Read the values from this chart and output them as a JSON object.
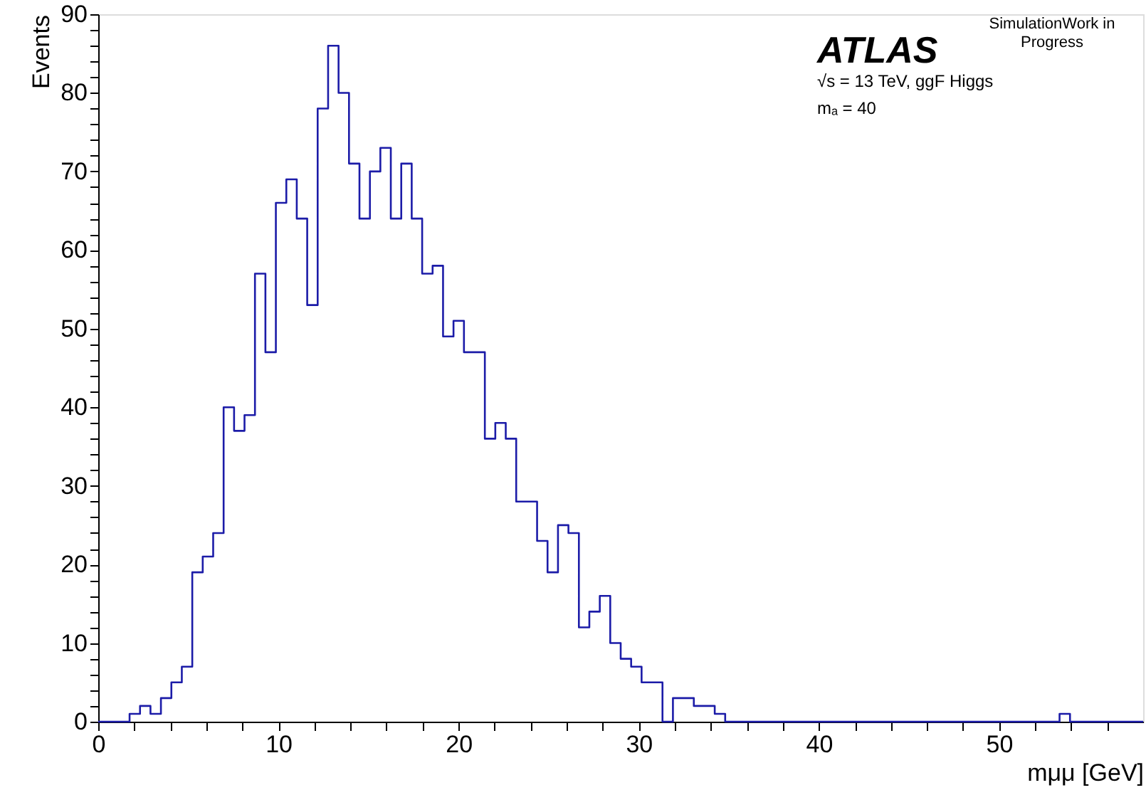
{
  "chart_data": {
    "type": "histogram",
    "xlabel": "mμμ [GeV]",
    "ylabel": "Events",
    "annotations": [
      "ATLAS",
      "SimulationWork in Progress",
      "√s = 13 TeV, ggF Higgs",
      "mₐ = 40"
    ],
    "bins": [
      0,
      0.58,
      1.16,
      1.74,
      2.32,
      2.9,
      3.48,
      4.06,
      4.64,
      5.22,
      5.8,
      6.38,
      6.96,
      7.54,
      8.12,
      8.7,
      9.28,
      9.86,
      10.44,
      11.02,
      11.6,
      12.18,
      12.76,
      13.34,
      13.92,
      14.5,
      15.08,
      15.66,
      16.24,
      16.82,
      17.4,
      17.98,
      18.56,
      19.14,
      19.72,
      20.3,
      20.88,
      21.46,
      22.04,
      22.62,
      23.2,
      23.78,
      24.36,
      24.94,
      25.52,
      26.1,
      26.68,
      27.26,
      27.84,
      28.42,
      29,
      29.58,
      30.16,
      30.74,
      31.32,
      31.9,
      32.48,
      33.06,
      33.64,
      34.22,
      34.8,
      35.38,
      35.96,
      36.54,
      37.12,
      37.7,
      38.28,
      38.86,
      39.44,
      40.02,
      40.6,
      41.18,
      41.76,
      42.34,
      42.92,
      43.5,
      44.08,
      44.66,
      45.24,
      45.82,
      46.4,
      46.98,
      47.56,
      48.14,
      48.72,
      49.3,
      49.88,
      50.46,
      51.04,
      51.62,
      52.2,
      52.78,
      53.36,
      53.94,
      54.52,
      55.1,
      55.68,
      56.26,
      56.84,
      57.42,
      58
    ],
    "values": [
      0,
      0,
      0,
      1,
      2,
      1,
      3,
      5,
      7,
      19,
      21,
      24,
      40,
      37,
      39,
      57,
      47,
      66,
      69,
      64,
      53,
      78,
      86,
      80,
      71,
      64,
      70,
      73,
      64,
      71,
      64,
      57,
      58,
      49,
      51,
      47,
      47,
      36,
      38,
      36,
      28,
      28,
      23,
      19,
      25,
      24,
      12,
      14,
      16,
      10,
      8,
      7,
      5,
      5,
      0,
      3,
      3,
      2,
      2,
      1,
      0,
      0,
      0,
      0,
      0,
      0,
      0,
      0,
      0,
      0,
      0,
      0,
      0,
      0,
      0,
      0,
      0,
      0,
      0,
      0,
      0,
      0,
      0,
      0,
      0,
      0,
      0,
      0,
      0,
      0,
      0,
      0,
      1,
      0,
      0,
      0,
      0,
      0,
      0,
      0
    ],
    "color": "#1c1ca8",
    "xlim": [
      0,
      58
    ],
    "ylim": [
      0,
      90
    ],
    "xticks": [
      0,
      {
        "value": 2,
        "label": null
      },
      {
        "value": 4,
        "label": null
      },
      {
        "value": 6,
        "label": null
      },
      {
        "value": 8,
        "label": null
      },
      10,
      {
        "value": 12,
        "label": null
      },
      {
        "value": 14,
        "label": null
      },
      {
        "value": 16,
        "label": null
      },
      {
        "value": 18,
        "label": null
      },
      20,
      {
        "value": 22,
        "label": null
      },
      {
        "value": 24,
        "label": null
      },
      {
        "value": 26,
        "label": null
      },
      {
        "value": 28,
        "label": null
      },
      30,
      {
        "value": 32,
        "label": null
      },
      {
        "value": 34,
        "label": null
      },
      {
        "value": 36,
        "label": null
      },
      {
        "value": 38,
        "label": null
      },
      40,
      {
        "value": 42,
        "label": null
      },
      {
        "value": 44,
        "label": null
      },
      {
        "value": 46,
        "label": null
      },
      {
        "value": 48,
        "label": null
      },
      50,
      {
        "value": 52,
        "label": null
      },
      {
        "value": 54,
        "label": null
      },
      {
        "value": 56,
        "label": null
      }
    ],
    "yticks": [
      0,
      {
        "value": 2,
        "label": null
      },
      {
        "value": 4,
        "label": null
      },
      {
        "value": 6,
        "label": null
      },
      {
        "value": 8,
        "label": null
      },
      10,
      {
        "value": 12,
        "label": null
      },
      {
        "value": 14,
        "label": null
      },
      {
        "value": 16,
        "label": null
      },
      {
        "value": 18,
        "label": null
      },
      20,
      {
        "value": 22,
        "label": null
      },
      {
        "value": 24,
        "label": null
      },
      {
        "value": 26,
        "label": null
      },
      {
        "value": 28,
        "label": null
      },
      30,
      {
        "value": 32,
        "label": null
      },
      {
        "value": 34,
        "label": null
      },
      {
        "value": 36,
        "label": null
      },
      {
        "value": 38,
        "label": null
      },
      40,
      {
        "value": 42,
        "label": null
      },
      {
        "value": 44,
        "label": null
      },
      {
        "value": 46,
        "label": null
      },
      {
        "value": 48,
        "label": null
      },
      50,
      {
        "value": 52,
        "label": null
      },
      {
        "value": 54,
        "label": null
      },
      {
        "value": 56,
        "label": null
      },
      {
        "value": 58,
        "label": null
      },
      60,
      {
        "value": 62,
        "label": null
      },
      {
        "value": 64,
        "label": null
      },
      {
        "value": 66,
        "label": null
      },
      {
        "value": 68,
        "label": null
      },
      70,
      {
        "value": 72,
        "label": null
      },
      {
        "value": 74,
        "label": null
      },
      {
        "value": 76,
        "label": null
      },
      {
        "value": 78,
        "label": null
      },
      80,
      {
        "value": 82,
        "label": null
      },
      {
        "value": 84,
        "label": null
      },
      {
        "value": 86,
        "label": null
      },
      {
        "value": 88,
        "label": null
      },
      90
    ],
    "grid": false
  }
}
